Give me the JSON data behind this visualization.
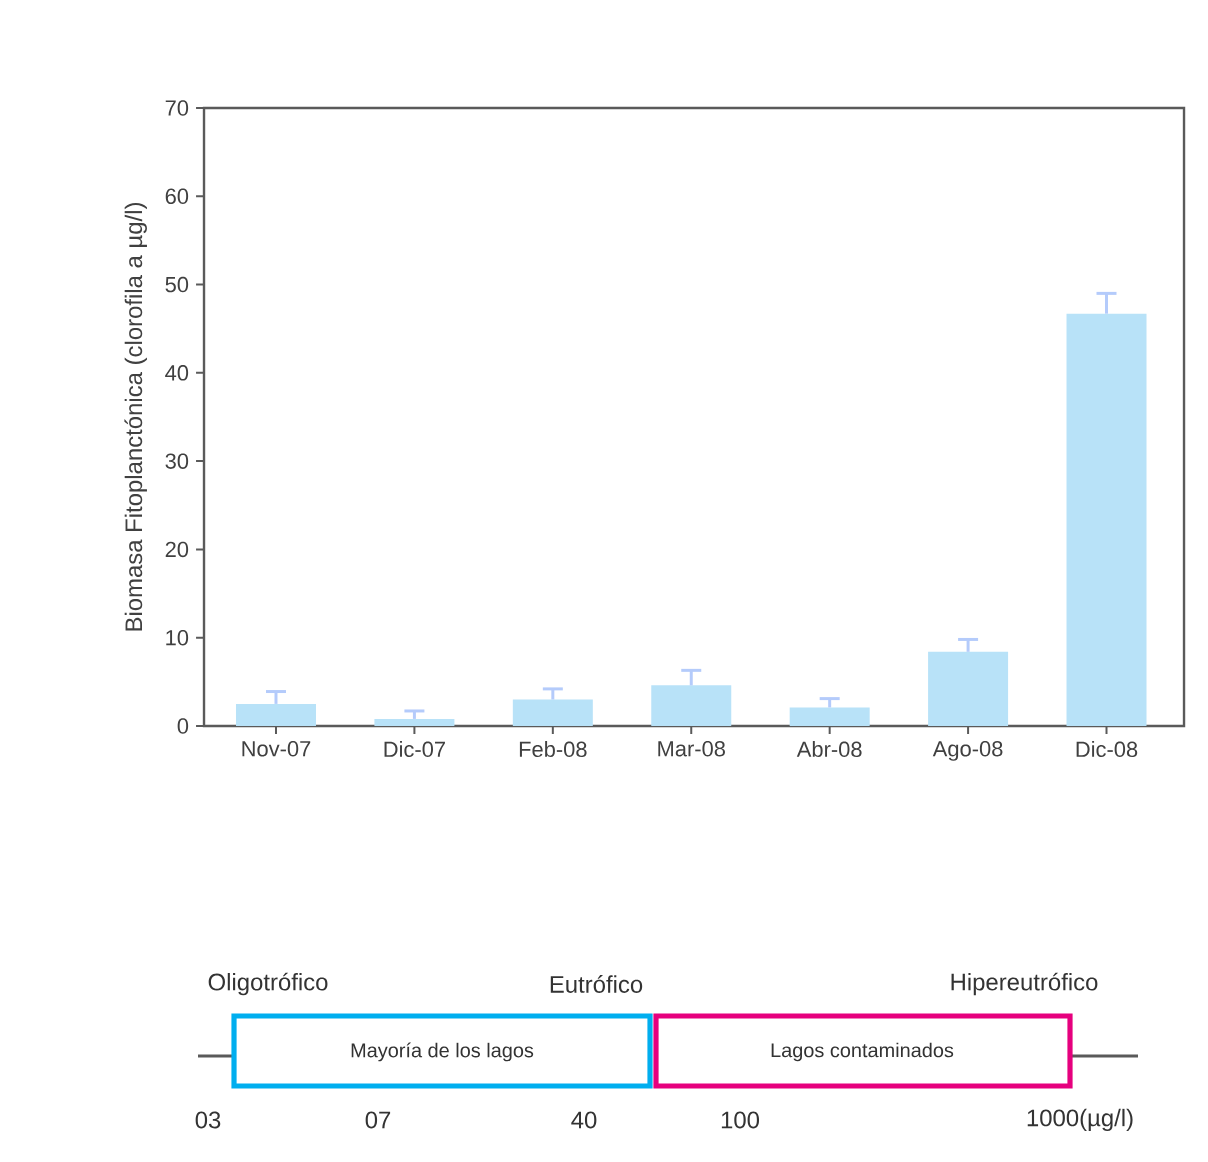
{
  "chart_data": [
    {
      "type": "bar",
      "ylabel": "Biomasa Fitoplanctónica (clorofila a µg/l)",
      "categories": [
        "Nov-07",
        "Dic-07",
        "Feb-08",
        "Mar-08",
        "Abr-08",
        "Ago-08",
        "Dic-08"
      ],
      "values": [
        2.5,
        0.8,
        3.0,
        4.6,
        2.1,
        8.4,
        46.7
      ],
      "errors": [
        [
          2.5,
          3.9
        ],
        [
          0.8,
          1.7
        ],
        [
          3.0,
          4.2
        ],
        [
          4.6,
          6.3
        ],
        [
          2.1,
          3.1
        ],
        [
          8.4,
          9.8
        ],
        [
          46.7,
          49.0
        ]
      ],
      "color": "#b8e2f8",
      "ylim": [
        0,
        70
      ],
      "yticks": [
        0,
        10,
        20,
        30,
        40,
        50,
        60,
        70
      ],
      "grid": false
    },
    {
      "type": "other",
      "annotations": [
        "Oligotrófico",
        "Eutrófico",
        "Hipereutrófico",
        "Mayoría de los lagos",
        "Lagos contaminados",
        "03",
        "07",
        "40",
        "100",
        "1000(µg/l)"
      ],
      "colors": [
        "#00aeef",
        "#e6007e"
      ]
    }
  ]
}
